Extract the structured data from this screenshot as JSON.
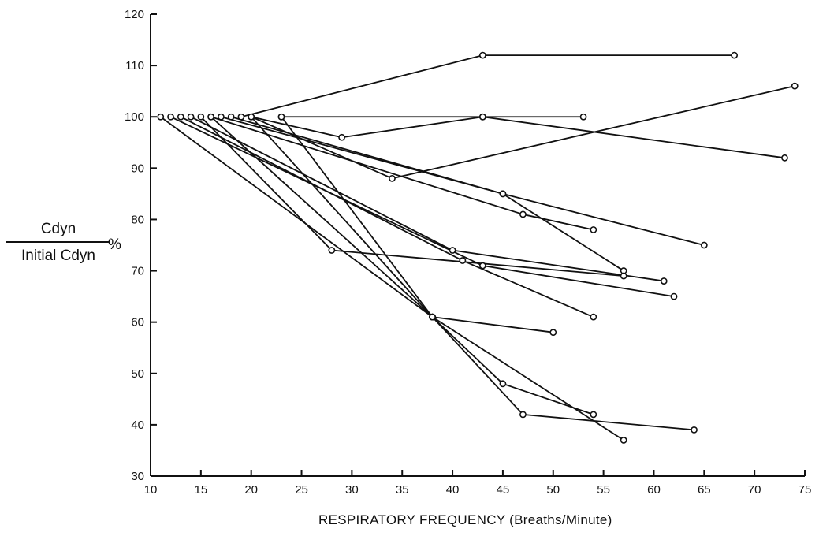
{
  "chart_data": {
    "type": "line",
    "xlabel": "RESPIRATORY FREQUENCY (Breaths/Minute)",
    "ylabel_numerator": "Cdyn",
    "ylabel_denominator": "Initial Cdyn",
    "ylabel_unit": "%",
    "xlim": [
      10,
      75
    ],
    "ylim": [
      30,
      120
    ],
    "xticks": [
      10,
      15,
      20,
      25,
      30,
      35,
      40,
      45,
      50,
      55,
      60,
      65,
      70,
      75
    ],
    "yticks": [
      30,
      40,
      50,
      60,
      70,
      80,
      90,
      100,
      110,
      120
    ],
    "grid": false,
    "series": [
      {
        "x": [
          19,
          43,
          68
        ],
        "y": [
          100,
          112,
          112
        ]
      },
      {
        "x": [
          20,
          34,
          74
        ],
        "y": [
          100,
          88,
          106
        ]
      },
      {
        "x": [
          20,
          29,
          43,
          53
        ],
        "y": [
          100,
          96,
          100,
          100
        ]
      },
      {
        "x": [
          23,
          43,
          73
        ],
        "y": [
          100,
          100,
          92
        ]
      },
      {
        "x": [
          18,
          45,
          65
        ],
        "y": [
          100,
          85,
          75
        ]
      },
      {
        "x": [
          17,
          45,
          57
        ],
        "y": [
          100,
          85,
          70
        ]
      },
      {
        "x": [
          16,
          47,
          54
        ],
        "y": [
          100,
          81,
          78
        ]
      },
      {
        "x": [
          15,
          28,
          57
        ],
        "y": [
          100,
          74,
          69
        ]
      },
      {
        "x": [
          14,
          40,
          61
        ],
        "y": [
          100,
          74,
          68
        ]
      },
      {
        "x": [
          13,
          41,
          54
        ],
        "y": [
          100,
          72,
          61
        ]
      },
      {
        "x": [
          12,
          43,
          62
        ],
        "y": [
          100,
          71,
          65
        ]
      },
      {
        "x": [
          11,
          38,
          50
        ],
        "y": [
          100,
          61,
          58
        ]
      },
      {
        "x": [
          16,
          38,
          47,
          64
        ],
        "y": [
          100,
          61,
          42,
          39
        ]
      },
      {
        "x": [
          20,
          38,
          45,
          54
        ],
        "y": [
          100,
          61,
          48,
          42
        ]
      },
      {
        "x": [
          23,
          38,
          57
        ],
        "y": [
          100,
          61,
          37
        ]
      }
    ]
  }
}
